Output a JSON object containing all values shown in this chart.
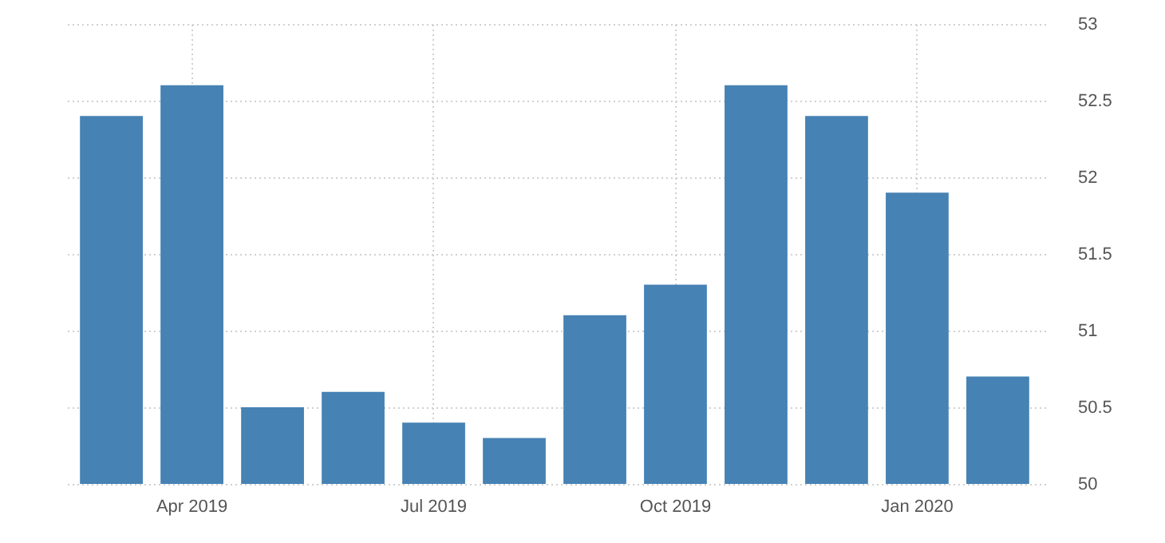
{
  "chart_data": {
    "type": "bar",
    "categories": [
      null,
      "Apr 2019",
      null,
      null,
      "Jul 2019",
      null,
      null,
      "Oct 2019",
      null,
      null,
      "Jan 2020",
      null
    ],
    "values": [
      52.4,
      52.6,
      50.5,
      50.6,
      50.4,
      50.3,
      51.1,
      51.3,
      52.6,
      52.4,
      51.9,
      50.7
    ],
    "color": "#4682b4",
    "ylim": [
      50,
      53
    ],
    "yticks": [
      50,
      50.5,
      51,
      51.5,
      52,
      52.5,
      53
    ],
    "grid": true
  }
}
